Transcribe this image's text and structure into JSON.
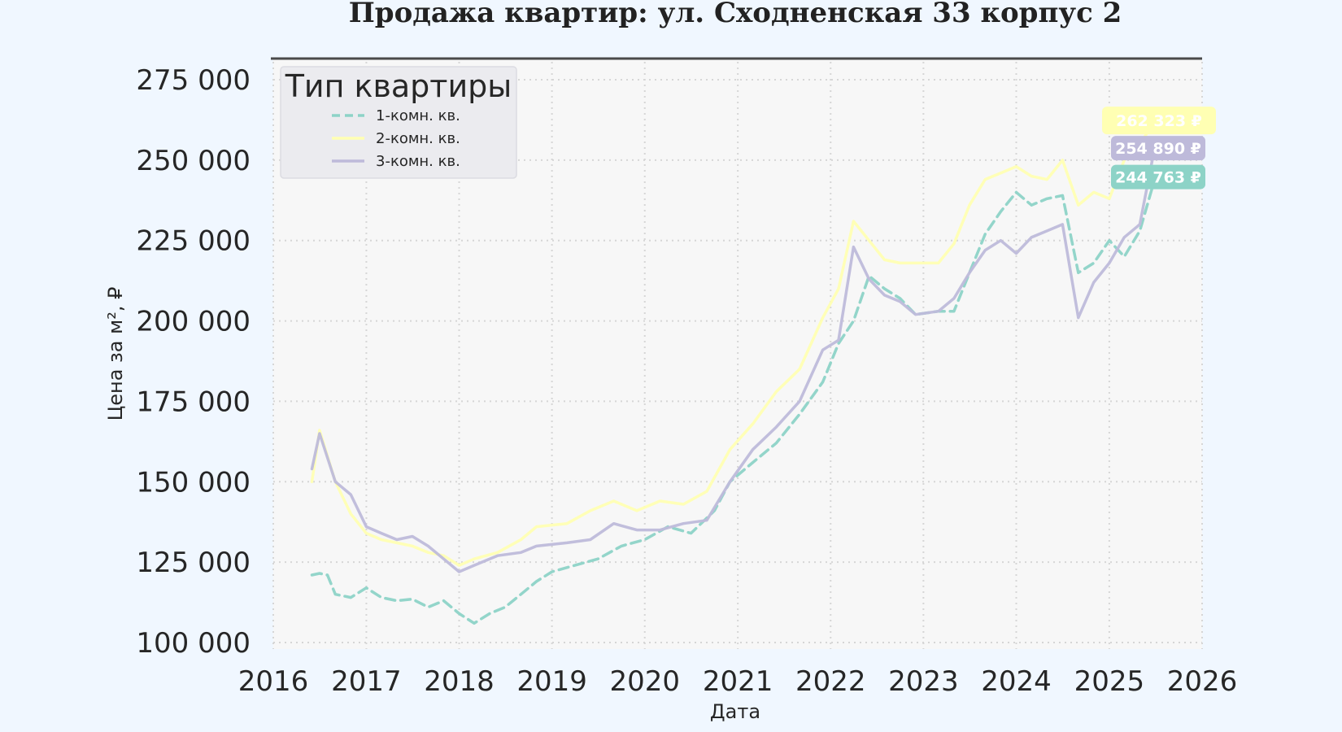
{
  "chart_data": {
    "type": "line",
    "title": "Продажа квартир: ул. Сходненская 33 корпус 2",
    "xlabel": "Дата",
    "ylabel": "Цена за м², ₽",
    "xlim": [
      "2016-01-01",
      "2026-01-01"
    ],
    "ylim": [
      100000,
      275000
    ],
    "x_ticks": [
      "2016",
      "2017",
      "2018",
      "2019",
      "2020",
      "2021",
      "2022",
      "2023",
      "2024",
      "2025",
      "2026"
    ],
    "y_ticks": [
      "100 000",
      "125 000",
      "150 000",
      "175 000",
      "200 000",
      "225 000",
      "250 000",
      "275 000"
    ],
    "y_tick_values": [
      100000,
      125000,
      150000,
      175000,
      200000,
      225000,
      250000,
      275000
    ],
    "grid": true,
    "legend": {
      "title": "Тип квартиры",
      "placement": "top-left"
    },
    "series": [
      {
        "name": "1-комн. кв.",
        "color": "#8dd3c7",
        "style": "dashed",
        "last_value_label": "244 763 ₽",
        "points": [
          [
            "2016-06-01",
            121000
          ],
          [
            "2016-07-01",
            121500
          ],
          [
            "2016-08-01",
            121000
          ],
          [
            "2016-09-01",
            115000
          ],
          [
            "2016-11-01",
            114000
          ],
          [
            "2017-01-01",
            117000
          ],
          [
            "2017-03-01",
            114000
          ],
          [
            "2017-05-01",
            113000
          ],
          [
            "2017-07-01",
            113500
          ],
          [
            "2017-09-01",
            111000
          ],
          [
            "2017-11-01",
            113000
          ],
          [
            "2018-01-01",
            109000
          ],
          [
            "2018-03-01",
            106000
          ],
          [
            "2018-05-01",
            109000
          ],
          [
            "2018-07-01",
            111000
          ],
          [
            "2018-09-01",
            115000
          ],
          [
            "2018-11-01",
            119000
          ],
          [
            "2019-01-01",
            122000
          ],
          [
            "2019-04-01",
            124000
          ],
          [
            "2019-07-01",
            126000
          ],
          [
            "2019-10-01",
            130000
          ],
          [
            "2020-01-01",
            132000
          ],
          [
            "2020-04-01",
            136000
          ],
          [
            "2020-07-01",
            134000
          ],
          [
            "2020-10-01",
            141000
          ],
          [
            "2020-12-01",
            150000
          ],
          [
            "2021-03-01",
            156000
          ],
          [
            "2021-06-01",
            162000
          ],
          [
            "2021-09-01",
            171000
          ],
          [
            "2021-12-01",
            181000
          ],
          [
            "2022-02-01",
            193000
          ],
          [
            "2022-04-01",
            200000
          ],
          [
            "2022-06-01",
            214000
          ],
          [
            "2022-08-01",
            210000
          ],
          [
            "2022-10-01",
            207000
          ],
          [
            "2022-12-01",
            202000
          ],
          [
            "2023-03-01",
            203000
          ],
          [
            "2023-05-01",
            203000
          ],
          [
            "2023-07-01",
            215000
          ],
          [
            "2023-09-01",
            227000
          ],
          [
            "2023-11-01",
            234000
          ],
          [
            "2024-01-01",
            240000
          ],
          [
            "2024-03-01",
            236000
          ],
          [
            "2024-05-01",
            238000
          ],
          [
            "2024-07-01",
            239000
          ],
          [
            "2024-09-01",
            215000
          ],
          [
            "2024-11-01",
            218000
          ],
          [
            "2025-01-01",
            225000
          ],
          [
            "2025-03-01",
            220000
          ],
          [
            "2025-05-01",
            228000
          ],
          [
            "2025-07-01",
            244763
          ]
        ]
      },
      {
        "name": "2-комн. кв.",
        "color": "#ffffb3",
        "style": "solid",
        "last_value_label": "262 323 ₽",
        "points": [
          [
            "2016-06-01",
            150000
          ],
          [
            "2016-07-01",
            166000
          ],
          [
            "2016-09-01",
            150000
          ],
          [
            "2016-11-01",
            140000
          ],
          [
            "2017-01-01",
            134000
          ],
          [
            "2017-03-01",
            132000
          ],
          [
            "2017-05-01",
            131000
          ],
          [
            "2017-07-01",
            130000
          ],
          [
            "2017-09-01",
            128000
          ],
          [
            "2017-11-01",
            127000
          ],
          [
            "2018-01-01",
            124000
          ],
          [
            "2018-03-01",
            126000
          ],
          [
            "2018-06-01",
            128000
          ],
          [
            "2018-09-01",
            132000
          ],
          [
            "2018-11-01",
            136000
          ],
          [
            "2019-03-01",
            137000
          ],
          [
            "2019-06-01",
            141000
          ],
          [
            "2019-09-01",
            144000
          ],
          [
            "2019-12-01",
            141000
          ],
          [
            "2020-03-01",
            144000
          ],
          [
            "2020-06-01",
            143000
          ],
          [
            "2020-09-01",
            147000
          ],
          [
            "2020-12-01",
            160000
          ],
          [
            "2021-03-01",
            168000
          ],
          [
            "2021-06-01",
            178000
          ],
          [
            "2021-09-01",
            185000
          ],
          [
            "2021-12-01",
            201000
          ],
          [
            "2022-02-01",
            210000
          ],
          [
            "2022-04-01",
            231000
          ],
          [
            "2022-06-01",
            225000
          ],
          [
            "2022-08-01",
            219000
          ],
          [
            "2022-10-01",
            218000
          ],
          [
            "2022-12-01",
            218000
          ],
          [
            "2023-03-01",
            218000
          ],
          [
            "2023-05-01",
            224000
          ],
          [
            "2023-07-01",
            236000
          ],
          [
            "2023-09-01",
            244000
          ],
          [
            "2023-11-01",
            246000
          ],
          [
            "2024-01-01",
            248000
          ],
          [
            "2024-03-01",
            245000
          ],
          [
            "2024-05-01",
            244000
          ],
          [
            "2024-07-01",
            250000
          ],
          [
            "2024-09-01",
            236000
          ],
          [
            "2024-11-01",
            240000
          ],
          [
            "2025-01-01",
            238000
          ],
          [
            "2025-03-01",
            250000
          ],
          [
            "2025-05-01",
            255000
          ],
          [
            "2025-07-01",
            262323
          ]
        ]
      },
      {
        "name": "3-комн. кв.",
        "color": "#bebada",
        "style": "solid",
        "last_value_label": "254 890 ₽",
        "points": [
          [
            "2016-06-01",
            154000
          ],
          [
            "2016-07-01",
            165000
          ],
          [
            "2016-09-01",
            150000
          ],
          [
            "2016-11-01",
            146000
          ],
          [
            "2017-01-01",
            136000
          ],
          [
            "2017-03-01",
            134000
          ],
          [
            "2017-05-01",
            132000
          ],
          [
            "2017-07-01",
            133000
          ],
          [
            "2017-09-01",
            130000
          ],
          [
            "2017-11-01",
            126000
          ],
          [
            "2018-01-01",
            122000
          ],
          [
            "2018-03-01",
            124000
          ],
          [
            "2018-06-01",
            127000
          ],
          [
            "2018-09-01",
            128000
          ],
          [
            "2018-11-01",
            130000
          ],
          [
            "2019-03-01",
            131000
          ],
          [
            "2019-06-01",
            132000
          ],
          [
            "2019-09-01",
            137000
          ],
          [
            "2019-12-01",
            135000
          ],
          [
            "2020-03-01",
            135000
          ],
          [
            "2020-06-01",
            137000
          ],
          [
            "2020-09-01",
            138000
          ],
          [
            "2020-12-01",
            150000
          ],
          [
            "2021-03-01",
            160000
          ],
          [
            "2021-06-01",
            167000
          ],
          [
            "2021-09-01",
            175000
          ],
          [
            "2021-12-01",
            191000
          ],
          [
            "2022-02-01",
            194000
          ],
          [
            "2022-04-01",
            223000
          ],
          [
            "2022-06-01",
            213000
          ],
          [
            "2022-08-01",
            208000
          ],
          [
            "2022-10-01",
            206000
          ],
          [
            "2022-12-01",
            202000
          ],
          [
            "2023-03-01",
            203000
          ],
          [
            "2023-05-01",
            207000
          ],
          [
            "2023-07-01",
            215000
          ],
          [
            "2023-09-01",
            222000
          ],
          [
            "2023-11-01",
            225000
          ],
          [
            "2024-01-01",
            221000
          ],
          [
            "2024-03-01",
            226000
          ],
          [
            "2024-05-01",
            228000
          ],
          [
            "2024-07-01",
            230000
          ],
          [
            "2024-09-01",
            201000
          ],
          [
            "2024-11-01",
            212000
          ],
          [
            "2025-01-01",
            218000
          ],
          [
            "2025-03-01",
            226000
          ],
          [
            "2025-05-01",
            230000
          ],
          [
            "2025-07-01",
            254890
          ]
        ]
      }
    ]
  }
}
